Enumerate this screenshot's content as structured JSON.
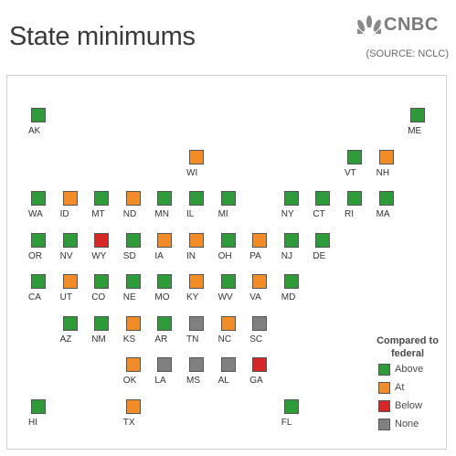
{
  "header": {
    "title": "State minimums",
    "logo_text": "CNBC",
    "source": "(SOURCE: NCLC)"
  },
  "legend": {
    "title": "Compared to federal",
    "items": [
      {
        "key": "above",
        "label": "Above",
        "color": "#2e9a3a"
      },
      {
        "key": "at",
        "label": "At",
        "color": "#f28c28"
      },
      {
        "key": "below",
        "label": "Below",
        "color": "#d62728"
      },
      {
        "key": "none",
        "label": "None",
        "color": "#808080"
      }
    ]
  },
  "states": [
    {
      "abbr": "AK",
      "status": "above",
      "col": 0,
      "row": 0
    },
    {
      "abbr": "ME",
      "status": "above",
      "col": 12,
      "row": 0
    },
    {
      "abbr": "WI",
      "status": "at",
      "col": 5,
      "row": 1
    },
    {
      "abbr": "VT",
      "status": "above",
      "col": 10,
      "row": 1
    },
    {
      "abbr": "NH",
      "status": "at",
      "col": 11,
      "row": 1
    },
    {
      "abbr": "WA",
      "status": "above",
      "col": 0,
      "row": 2
    },
    {
      "abbr": "ID",
      "status": "at",
      "col": 1,
      "row": 2
    },
    {
      "abbr": "MT",
      "status": "above",
      "col": 2,
      "row": 2
    },
    {
      "abbr": "ND",
      "status": "at",
      "col": 3,
      "row": 2
    },
    {
      "abbr": "MN",
      "status": "above",
      "col": 4,
      "row": 2
    },
    {
      "abbr": "IL",
      "status": "above",
      "col": 5,
      "row": 2
    },
    {
      "abbr": "MI",
      "status": "above",
      "col": 6,
      "row": 2
    },
    {
      "abbr": "NY",
      "status": "above",
      "col": 8,
      "row": 2
    },
    {
      "abbr": "CT",
      "status": "above",
      "col": 9,
      "row": 2
    },
    {
      "abbr": "RI",
      "status": "above",
      "col": 10,
      "row": 2
    },
    {
      "abbr": "MA",
      "status": "above",
      "col": 11,
      "row": 2
    },
    {
      "abbr": "OR",
      "status": "above",
      "col": 0,
      "row": 3
    },
    {
      "abbr": "NV",
      "status": "above",
      "col": 1,
      "row": 3
    },
    {
      "abbr": "WY",
      "status": "below",
      "col": 2,
      "row": 3
    },
    {
      "abbr": "SD",
      "status": "above",
      "col": 3,
      "row": 3
    },
    {
      "abbr": "IA",
      "status": "at",
      "col": 4,
      "row": 3
    },
    {
      "abbr": "IN",
      "status": "at",
      "col": 5,
      "row": 3
    },
    {
      "abbr": "OH",
      "status": "above",
      "col": 6,
      "row": 3
    },
    {
      "abbr": "PA",
      "status": "at",
      "col": 7,
      "row": 3
    },
    {
      "abbr": "NJ",
      "status": "above",
      "col": 8,
      "row": 3
    },
    {
      "abbr": "DE",
      "status": "above",
      "col": 9,
      "row": 3
    },
    {
      "abbr": "CA",
      "status": "above",
      "col": 0,
      "row": 4
    },
    {
      "abbr": "UT",
      "status": "at",
      "col": 1,
      "row": 4
    },
    {
      "abbr": "CO",
      "status": "above",
      "col": 2,
      "row": 4
    },
    {
      "abbr": "NE",
      "status": "above",
      "col": 3,
      "row": 4
    },
    {
      "abbr": "MO",
      "status": "above",
      "col": 4,
      "row": 4
    },
    {
      "abbr": "KY",
      "status": "at",
      "col": 5,
      "row": 4
    },
    {
      "abbr": "WV",
      "status": "above",
      "col": 6,
      "row": 4
    },
    {
      "abbr": "VA",
      "status": "at",
      "col": 7,
      "row": 4
    },
    {
      "abbr": "MD",
      "status": "above",
      "col": 8,
      "row": 4
    },
    {
      "abbr": "AZ",
      "status": "above",
      "col": 1,
      "row": 5
    },
    {
      "abbr": "NM",
      "status": "above",
      "col": 2,
      "row": 5
    },
    {
      "abbr": "KS",
      "status": "at",
      "col": 3,
      "row": 5
    },
    {
      "abbr": "AR",
      "status": "above",
      "col": 4,
      "row": 5
    },
    {
      "abbr": "TN",
      "status": "none",
      "col": 5,
      "row": 5
    },
    {
      "abbr": "NC",
      "status": "at",
      "col": 6,
      "row": 5
    },
    {
      "abbr": "SC",
      "status": "none",
      "col": 7,
      "row": 5
    },
    {
      "abbr": "OK",
      "status": "at",
      "col": 3,
      "row": 6
    },
    {
      "abbr": "LA",
      "status": "none",
      "col": 4,
      "row": 6
    },
    {
      "abbr": "MS",
      "status": "none",
      "col": 5,
      "row": 6
    },
    {
      "abbr": "AL",
      "status": "none",
      "col": 6,
      "row": 6
    },
    {
      "abbr": "GA",
      "status": "below",
      "col": 7,
      "row": 6
    },
    {
      "abbr": "HI",
      "status": "above",
      "col": 0,
      "row": 7
    },
    {
      "abbr": "TX",
      "status": "at",
      "col": 3,
      "row": 7
    },
    {
      "abbr": "FL",
      "status": "above",
      "col": 8,
      "row": 7
    }
  ]
}
